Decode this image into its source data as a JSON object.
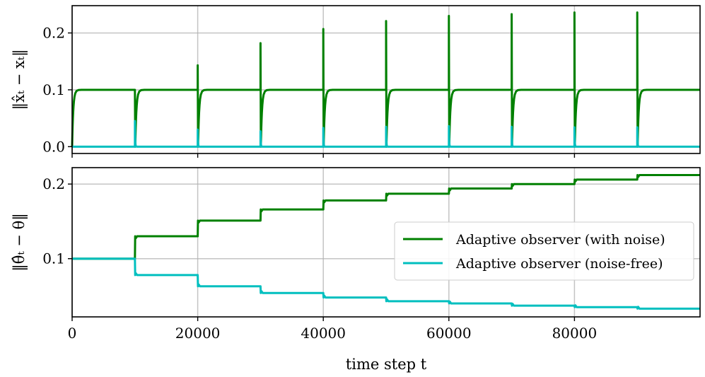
{
  "chart_data": [
    {
      "type": "line",
      "id": "top",
      "title": "",
      "xlabel": "",
      "ylabel": "‖x̂ₜ − xₜ‖",
      "xlim": [
        0,
        100000
      ],
      "ylim": [
        -0.012,
        0.248
      ],
      "xticks": [
        0,
        20000,
        40000,
        60000,
        80000
      ],
      "xtick_labels_visible": false,
      "yticks": [
        0.0,
        0.1,
        0.2
      ],
      "ytick_labels": [
        "0.0",
        "0.1",
        "0.2"
      ],
      "grid": true,
      "series": [
        {
          "name": "Adaptive observer (with noise)",
          "color": "#008000",
          "kind": "state_error_noisy",
          "plateau": 0.1,
          "reset_x": [
            0,
            10000,
            20000,
            30000,
            40000,
            50000,
            60000,
            70000,
            80000,
            90000
          ],
          "spike_peaks": [
            0.1,
            0.1,
            0.143,
            0.182,
            0.207,
            0.221,
            0.23,
            0.233,
            0.236,
            0.236
          ]
        },
        {
          "name": "Adaptive observer (noise-free)",
          "color": "#00BFBF",
          "kind": "state_error_clean",
          "plateau": 0.0,
          "reset_x": [
            0,
            10000,
            20000,
            30000,
            40000,
            50000,
            60000,
            70000,
            80000,
            90000
          ],
          "spike_peaks": [
            0.0,
            0.045,
            0.03,
            0.027,
            0.033,
            0.035,
            0.036,
            0.035,
            0.034,
            0.034
          ]
        }
      ]
    },
    {
      "type": "line",
      "id": "bottom",
      "title": "",
      "xlabel": "time step t",
      "ylabel": "‖θ̂ₜ − θ‖",
      "xlim": [
        0,
        100000
      ],
      "ylim": [
        0.022,
        0.222
      ],
      "xticks": [
        0,
        20000,
        40000,
        60000,
        80000
      ],
      "xtick_labels": [
        "0",
        "20000",
        "40000",
        "60000",
        "80000"
      ],
      "yticks": [
        0.1,
        0.2
      ],
      "ytick_labels": [
        "0.1",
        "0.2"
      ],
      "grid": true,
      "legend_position": "center-right",
      "series": [
        {
          "name": "Adaptive observer (with noise)",
          "color": "#008000",
          "step_x": [
            0,
            10000,
            20000,
            30000,
            40000,
            50000,
            60000,
            70000,
            80000,
            90000
          ],
          "step_values": [
            0.1,
            0.13,
            0.151,
            0.166,
            0.178,
            0.187,
            0.194,
            0.2,
            0.206,
            0.212
          ]
        },
        {
          "name": "Adaptive observer (noise-free)",
          "color": "#00BFBF",
          "step_x": [
            0,
            10000,
            20000,
            30000,
            40000,
            50000,
            60000,
            70000,
            80000,
            90000
          ],
          "step_values": [
            0.1,
            0.078,
            0.063,
            0.054,
            0.048,
            0.043,
            0.04,
            0.037,
            0.035,
            0.033
          ]
        }
      ]
    }
  ]
}
